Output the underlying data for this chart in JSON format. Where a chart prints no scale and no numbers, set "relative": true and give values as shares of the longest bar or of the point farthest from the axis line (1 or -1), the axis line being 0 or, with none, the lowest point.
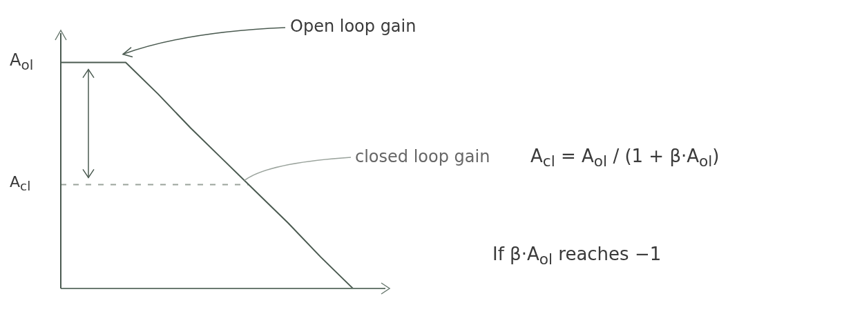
{
  "chart_data": {
    "type": "line",
    "relative": true,
    "marker": "none",
    "categories": [
      null,
      null,
      null,
      null,
      null,
      null,
      null,
      null,
      null,
      null,
      null
    ],
    "series": [
      {
        "color": "#4a5a50",
        "values": [
          1,
          1,
          1,
          0.86,
          0.71,
          0.57,
          0.43,
          0.29,
          0.14,
          0,
          null
        ]
      }
    ],
    "ref_lines": [
      {
        "axis": "y",
        "value": 0.46,
        "label": "A$_{cl}$",
        "line_style": "dashed",
        "color": "#9aa39c"
      }
    ],
    "annotations": [
      "A$_{ol}$",
      "Open loop gain",
      "closed loop gain",
      "A$_{cl}$ = A$_{ol}$ / (1 + β·A$_{ol}$)",
      "If β·A$_{ol}$ reaches −1"
    ]
  }
}
